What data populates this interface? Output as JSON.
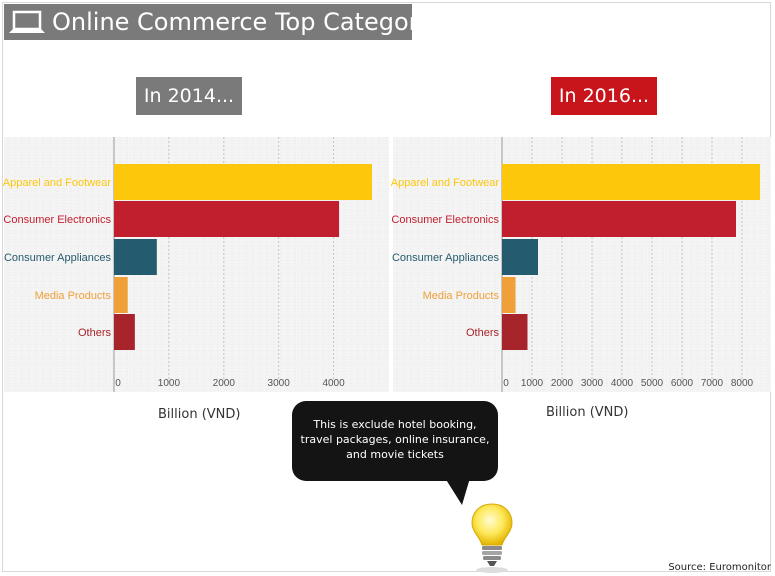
{
  "header": {
    "title": "Online Commerce Top Categories",
    "icon": "laptop-icon"
  },
  "note": "This is exclude hotel booking, travel packages, online insurance, and movie tickets",
  "note_lines": [
    "This is exclude hotel booking,",
    "travel packages, online insurance,",
    "and movie tickets"
  ],
  "source": "Source: Euromonitor",
  "colors": {
    "apparel": "#fdc70c",
    "electronics": "#c21f2e",
    "appliances": "#255b6e",
    "media": "#f0a038",
    "others": "#a7252a",
    "badge_2014": "#7a7a7a",
    "badge_2016": "#c8151c"
  },
  "chart_data": [
    {
      "type": "bar",
      "orientation": "horizontal",
      "title": "In 2014...",
      "xlabel": "Billion (VND)",
      "categories": [
        "Apparel and Footwear",
        "Consumer Electronics",
        "Consumer Appliances",
        "Media Products",
        "Others"
      ],
      "values": [
        4700,
        4100,
        780,
        250,
        380
      ],
      "xlim": [
        0,
        4700
      ],
      "xticks": [
        0,
        1000,
        2000,
        3000,
        4000
      ],
      "grid": true
    },
    {
      "type": "bar",
      "orientation": "horizontal",
      "title": "In 2016...",
      "xlabel": "Billion (VND)",
      "categories": [
        "Apparel and Footwear",
        "Consumer Electronics",
        "Consumer Appliances",
        "Media Products",
        "Others"
      ],
      "values": [
        8600,
        7800,
        1200,
        450,
        850
      ],
      "xlim": [
        0,
        8600
      ],
      "xticks": [
        0,
        1000,
        2000,
        3000,
        4000,
        5000,
        6000,
        7000,
        8000
      ],
      "grid": true
    }
  ]
}
